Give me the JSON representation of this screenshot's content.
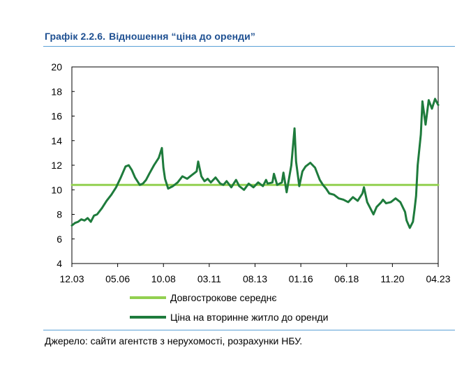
{
  "title": {
    "number": "Графік 2.2.6.",
    "text": "Відношення “ціна до оренди”"
  },
  "source": "Джерело: сайти агентств з нерухомості, розрахунки НБУ.",
  "chart_data": {
    "type": "line",
    "title": "Відношення “ціна до оренди”",
    "xlabel": "",
    "ylabel": "",
    "ylim": [
      4,
      20
    ],
    "yticks": [
      "4",
      "6",
      "8",
      "10",
      "12",
      "14",
      "16",
      "18",
      "20"
    ],
    "xlim": [
      2003.917,
      2023.25
    ],
    "xticks": [
      {
        "label": "12.03",
        "x": 2003.917
      },
      {
        "label": "05.06",
        "x": 2006.333
      },
      {
        "label": "10.08",
        "x": 2008.75
      },
      {
        "label": "03.11",
        "x": 2011.167
      },
      {
        "label": "08.13",
        "x": 2013.583
      },
      {
        "label": "01.16",
        "x": 2016.0
      },
      {
        "label": "06.18",
        "x": 2018.417
      },
      {
        "label": "11.20",
        "x": 2020.833
      },
      {
        "label": "04.23",
        "x": 2023.25
      }
    ],
    "grid": false,
    "legend_position": "bottom",
    "series": [
      {
        "name": "Довгострокове середнє",
        "color": "#92d050",
        "x": [
          2003.917,
          2023.25
        ],
        "y": [
          10.4,
          10.4
        ]
      },
      {
        "name": "Ціна на вторинне житло до оренди",
        "color": "#1e7b3c",
        "x": [
          2003.917,
          2004.083,
          2004.25,
          2004.417,
          2004.583,
          2004.75,
          2004.917,
          2005.083,
          2005.25,
          2005.5,
          2005.75,
          2006.0,
          2006.25,
          2006.5,
          2006.75,
          2006.917,
          2007.083,
          2007.25,
          2007.5,
          2007.667,
          2007.833,
          2008.0,
          2008.25,
          2008.5,
          2008.667,
          2008.75,
          2008.833,
          2009.0,
          2009.25,
          2009.5,
          2009.75,
          2010.0,
          2010.25,
          2010.5,
          2010.583,
          2010.75,
          2010.917,
          2011.083,
          2011.25,
          2011.5,
          2011.75,
          2011.917,
          2012.083,
          2012.333,
          2012.583,
          2012.75,
          2013.0,
          2013.25,
          2013.5,
          2013.75,
          2014.0,
          2014.167,
          2014.25,
          2014.5,
          2014.583,
          2014.75,
          2015.0,
          2015.083,
          2015.25,
          2015.5,
          2015.667,
          2015.75,
          2015.917,
          2016.083,
          2016.25,
          2016.5,
          2016.75,
          2017.0,
          2017.167,
          2017.333,
          2017.5,
          2017.75,
          2018.0,
          2018.25,
          2018.5,
          2018.75,
          2019.0,
          2019.25,
          2019.333,
          2019.5,
          2019.667,
          2019.833,
          2020.0,
          2020.25,
          2020.333,
          2020.5,
          2020.75,
          2021.0,
          2021.25,
          2021.5,
          2021.583,
          2021.75,
          2021.917,
          2022.0,
          2022.083,
          2022.167,
          2022.333,
          2022.417,
          2022.583,
          2022.75,
          2022.917,
          2023.083,
          2023.25
        ],
        "y": [
          7.1,
          7.3,
          7.4,
          7.6,
          7.5,
          7.7,
          7.4,
          7.9,
          8.0,
          8.5,
          9.1,
          9.6,
          10.2,
          11.0,
          11.9,
          12.0,
          11.6,
          11.0,
          10.4,
          10.5,
          10.8,
          11.3,
          12.0,
          12.6,
          13.4,
          11.8,
          10.9,
          10.1,
          10.3,
          10.6,
          11.1,
          10.9,
          11.2,
          11.5,
          12.3,
          11.1,
          10.7,
          10.9,
          10.6,
          11.0,
          10.5,
          10.4,
          10.7,
          10.2,
          10.8,
          10.3,
          10.0,
          10.5,
          10.2,
          10.6,
          10.3,
          10.8,
          10.5,
          10.6,
          11.3,
          10.4,
          10.6,
          11.4,
          9.8,
          12.0,
          15.0,
          12.3,
          10.3,
          11.5,
          11.9,
          12.2,
          11.8,
          10.8,
          10.4,
          10.1,
          9.7,
          9.6,
          9.3,
          9.2,
          9.0,
          9.4,
          9.1,
          9.7,
          10.2,
          9.0,
          8.5,
          8.0,
          8.6,
          9.0,
          9.2,
          8.9,
          9.0,
          9.3,
          9.0,
          8.2,
          7.5,
          6.9,
          7.4,
          8.4,
          9.5,
          12.0,
          14.5,
          17.2,
          15.3,
          17.3,
          16.6,
          17.4,
          16.9
        ]
      }
    ]
  },
  "colors": {
    "title": "#1d4f91",
    "rules": "#5aa0d6",
    "average_line": "#92d050",
    "price_line": "#1e7b3c",
    "axis": "#000000"
  }
}
